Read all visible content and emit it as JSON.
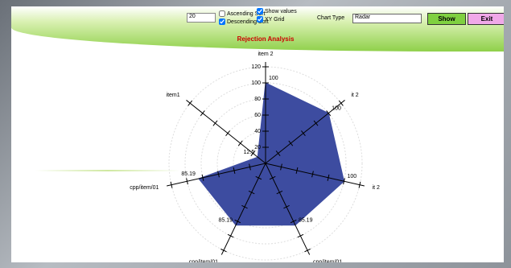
{
  "controls": {
    "count_input": "20",
    "ascending_sort": {
      "label": "Ascending Sort",
      "checked": false
    },
    "descending_sort": {
      "label": "Descending Sort",
      "checked": true
    },
    "show_values": {
      "label": "Show values",
      "checked": true
    },
    "xy_grid": {
      "label": "XY Grid",
      "checked": true
    },
    "chart_type_label": "Chart Type",
    "chart_type": "Radar",
    "show_button": "Show",
    "exit_button": "Exit"
  },
  "chart_data": {
    "type": "radar",
    "title": "Rejection Analysis",
    "categories": [
      "item 2",
      "it 2",
      "it 2",
      "cpp/item/01",
      "cpp/item/01",
      "cpp/item/01",
      "item1"
    ],
    "values": [
      100,
      100,
      100,
      85.19,
      85.19,
      85.19,
      12.5
    ],
    "color": "#3d4ca0",
    "ylim": [
      0,
      120
    ],
    "yticks": [
      20,
      40,
      60,
      80,
      100,
      120
    ],
    "grid": true
  }
}
